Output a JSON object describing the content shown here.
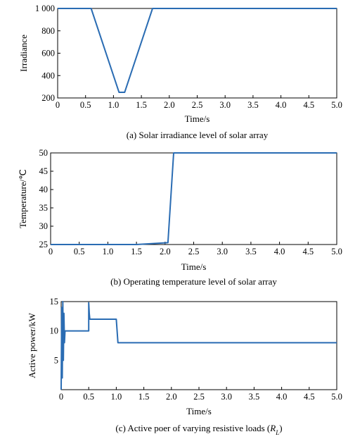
{
  "chart_data": [
    {
      "type": "line",
      "xlabel": "Time/s",
      "ylabel": "Irradiance",
      "caption": "(a) Solar irradiance level of solar array",
      "xlim": [
        0,
        5.0
      ],
      "ylim": [
        200,
        1000
      ],
      "x_tick_labels": [
        "0",
        "0.5",
        "1.0",
        "1.5",
        "2.0",
        "2.5",
        "3.0",
        "3.5",
        "4.0",
        "4.5",
        "5.0"
      ],
      "y_tick_labels": [
        "200",
        "400",
        "600",
        "800",
        "1 000"
      ],
      "series": [
        {
          "color": "#2a6cb3",
          "x": [
            0,
            0.6,
            1.1,
            1.2,
            1.7,
            5.0
          ],
          "y": [
            1000,
            1000,
            250,
            250,
            1000,
            1000
          ]
        }
      ]
    },
    {
      "type": "line",
      "xlabel": "Time/s",
      "ylabel": "Temperature/℃",
      "caption": "(b) Operating temperature level of solar array",
      "xlim": [
        0,
        5.0
      ],
      "ylim": [
        25,
        50
      ],
      "x_tick_labels": [
        "0",
        "0.5",
        "1.0",
        "1.5",
        "2.0",
        "2.5",
        "3.0",
        "3.5",
        "4.0",
        "4.5",
        "5.0"
      ],
      "y_tick_labels": [
        "25",
        "30",
        "35",
        "40",
        "45",
        "50"
      ],
      "series": [
        {
          "color": "#2a6cb3",
          "x": [
            0,
            1.5,
            2.05,
            2.15,
            5.0
          ],
          "y": [
            25,
            25,
            25.5,
            50,
            50
          ]
        }
      ]
    },
    {
      "type": "line",
      "xlabel": "Time/s",
      "ylabel": "Active power/kW",
      "caption": "(c) Active poer of varying resistive loads (",
      "caption_var": "R",
      "caption_sub": "L",
      "caption_end": ")",
      "xlim": [
        0,
        5.0
      ],
      "ylim": [
        0,
        15
      ],
      "x_tick_labels": [
        "0",
        "0.5",
        "1.0",
        "1.5",
        "2.0",
        "2.5",
        "3.0",
        "3.5",
        "4.0",
        "4.5",
        "5.0"
      ],
      "y_tick_labels": [
        "5",
        "10",
        "15"
      ],
      "series": [
        {
          "color": "#2a6cb3",
          "x": [
            0,
            0.01,
            0.02,
            0.03,
            0.04,
            0.05,
            0.06,
            0.07,
            0.09,
            0.5,
            0.5,
            0.51,
            0.52,
            0.56,
            1.0,
            1.03,
            5.0
          ],
          "y": [
            0,
            14,
            2,
            15,
            5,
            13,
            8,
            10,
            10,
            10,
            14.8,
            13,
            12,
            12,
            12,
            8,
            8
          ]
        }
      ]
    }
  ]
}
